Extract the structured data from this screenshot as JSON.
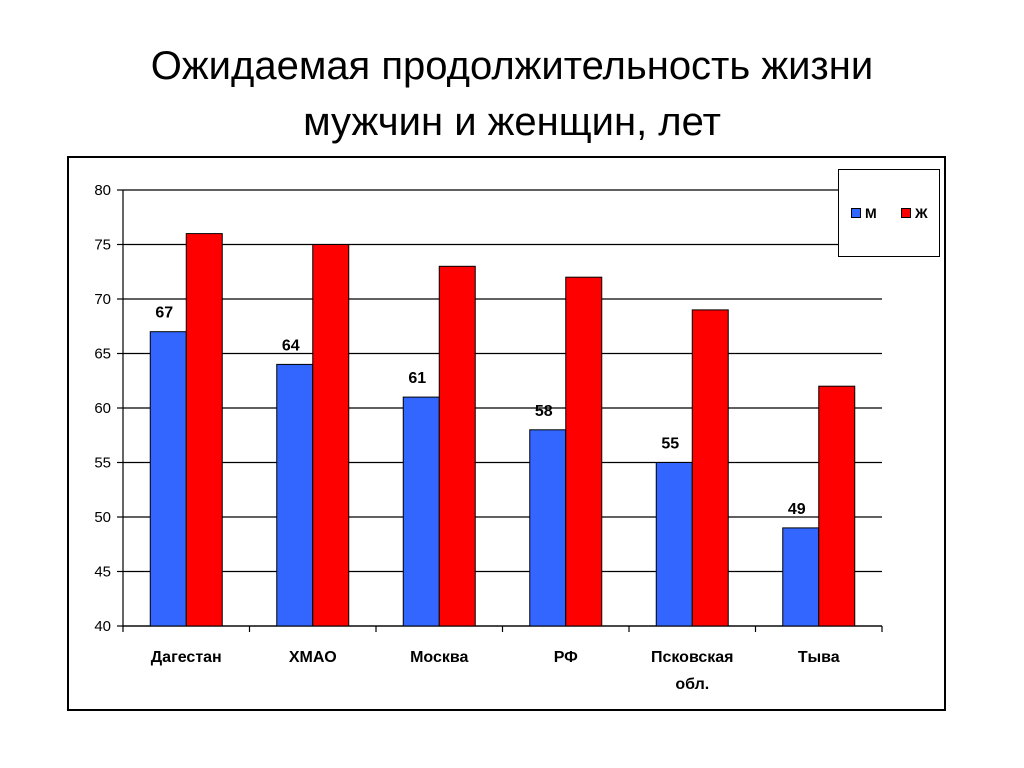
{
  "slide": {
    "title_line1": "Ожидаемая продолжительность жизни",
    "title_line2": "мужчин и женщин, лет"
  },
  "colors": {
    "male": "#3366ff",
    "female": "#ff0000",
    "grid": "#000000"
  },
  "chart_data": {
    "type": "bar",
    "title": "Ожидаемая продолжительность жизни мужчин и женщин, лет",
    "categories": [
      "Дагестан",
      "ХМАО",
      "Москва",
      "РФ",
      "Псковская обл.",
      "Тыва"
    ],
    "category_lines": [
      [
        "Дагестан"
      ],
      [
        "ХМАО"
      ],
      [
        "Москва"
      ],
      [
        "РФ"
      ],
      [
        "Псковская",
        "обл."
      ],
      [
        "Тыва"
      ]
    ],
    "series": [
      {
        "name": "М",
        "values": [
          67,
          64,
          61,
          58,
          55,
          49
        ],
        "color": "#3366ff",
        "data_labels": true
      },
      {
        "name": "Ж",
        "values": [
          76,
          75,
          73,
          72,
          69,
          62
        ],
        "color": "#ff0000",
        "data_labels": false
      }
    ],
    "ylim": [
      40,
      80
    ],
    "yticks": [
      40,
      45,
      50,
      55,
      60,
      65,
      70,
      75,
      80
    ],
    "grid": true,
    "legend_position": "top-right",
    "xlabel": "",
    "ylabel": ""
  }
}
